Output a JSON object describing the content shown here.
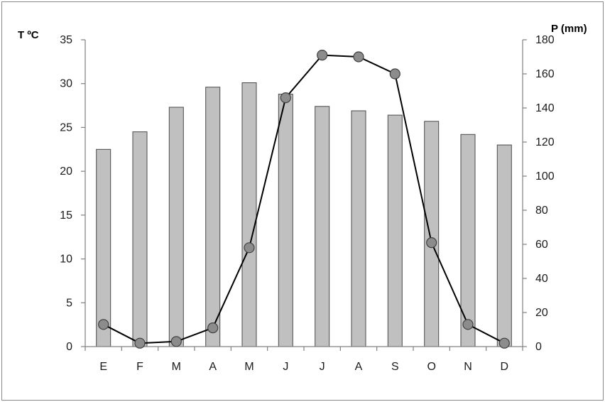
{
  "chart_data": {
    "type": "bar+line",
    "categories": [
      "E",
      "F",
      "M",
      "A",
      "M",
      "J",
      "J",
      "A",
      "S",
      "O",
      "N",
      "D"
    ],
    "series": [
      {
        "type": "bar",
        "axis": "left",
        "values": [
          22.5,
          24.5,
          27.3,
          29.6,
          30.1,
          28.8,
          27.4,
          26.9,
          26.4,
          25.7,
          24.2,
          23.0
        ]
      },
      {
        "type": "line",
        "axis": "right",
        "values": [
          13,
          2,
          3,
          11,
          58,
          146,
          171,
          170,
          160,
          61,
          13,
          2
        ]
      }
    ],
    "ylabel_left": "T ºC",
    "ylabel_right": "P (mm)",
    "ylim_left": [
      0,
      35
    ],
    "ylim_right": [
      0,
      180
    ],
    "yticks_left": [
      0,
      5,
      10,
      15,
      20,
      25,
      30,
      35
    ],
    "yticks_right": [
      0,
      20,
      40,
      60,
      80,
      100,
      120,
      140,
      160,
      180
    ],
    "grid": false,
    "legend": "none",
    "colors": {
      "bar_fill": "#c0c0c0",
      "bar_stroke": "#4a4a4a",
      "line": "#000000",
      "marker_fill": "#8c8c8c",
      "marker_stroke": "#404040",
      "axis": "#808080"
    }
  }
}
